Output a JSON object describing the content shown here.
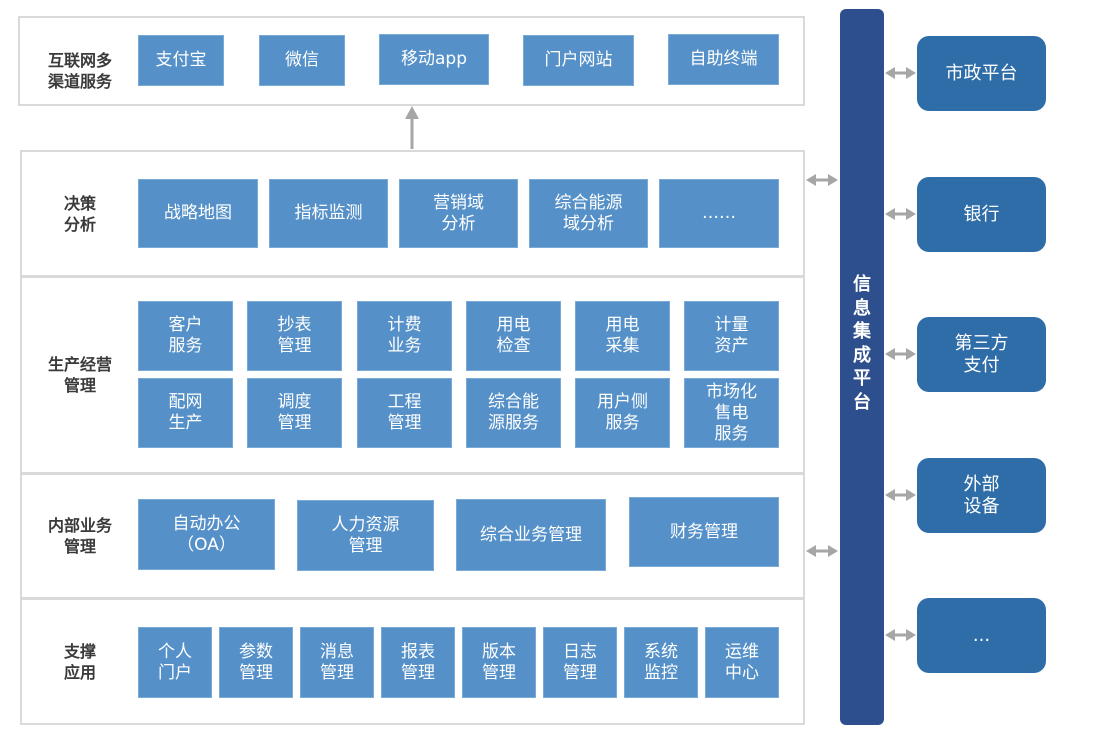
{
  "sections": [
    {
      "label": "互联网多\n渠道服务",
      "items": [
        "支付宝",
        "微信",
        "移动app",
        "门户网站",
        "自助终端"
      ]
    },
    {
      "label": "决策\n分析",
      "items": [
        "战略地图",
        "指标监测",
        "营销域\n分析",
        "综合能源\n域分析",
        "……"
      ]
    },
    {
      "label": "生产经营\n管理",
      "items": [
        "客户\n服务",
        "抄表\n管理",
        "计费\n业务",
        "用电\n检查",
        "用电\n采集",
        "计量\n资产",
        "配网\n生产",
        "调度\n管理",
        "工程\n管理",
        "综合能\n源服务",
        "用户侧\n服务",
        "市场化\n售电\n服务"
      ]
    },
    {
      "label": "内部业务\n管理",
      "items": [
        "自动办公\n（OA）",
        "人力资源\n管理",
        "综合业务管理",
        "财务管理"
      ]
    },
    {
      "label": "支撑\n应用",
      "items": [
        "个人\n门户",
        "参数\n管理",
        "消息\n管理",
        "报表\n管理",
        "版本\n管理",
        "日志\n管理",
        "系统\n监控",
        "运维\n中心"
      ]
    }
  ],
  "integration_platform": "信息集成平台",
  "external_systems": [
    "市政平台",
    "银行",
    "第三方\n支付",
    "外部\n设备",
    "..."
  ],
  "colors": {
    "module": "#5591c8",
    "bus": "#2d4f8e",
    "external": "#2e6da8",
    "arrow": "#a6a6a6"
  }
}
